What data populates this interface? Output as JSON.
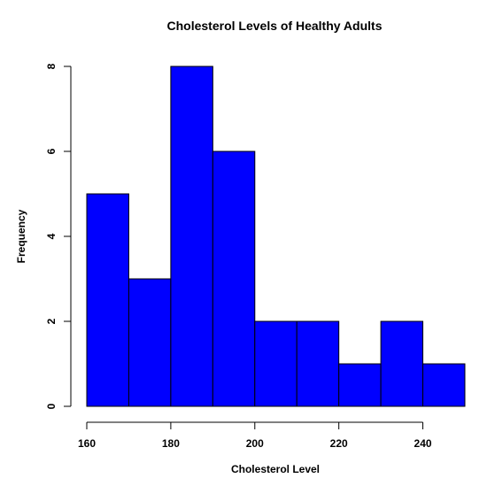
{
  "chart_data": {
    "type": "bar",
    "title": "Cholesterol Levels of Healthy Adults",
    "xlabel": "Cholesterol Level",
    "ylabel": "Frequency",
    "bins": [
      {
        "from": 160,
        "to": 170,
        "count": 5
      },
      {
        "from": 170,
        "to": 180,
        "count": 3
      },
      {
        "from": 180,
        "to": 190,
        "count": 8
      },
      {
        "from": 190,
        "to": 200,
        "count": 6
      },
      {
        "from": 200,
        "to": 210,
        "count": 2
      },
      {
        "from": 210,
        "to": 220,
        "count": 2
      },
      {
        "from": 220,
        "to": 230,
        "count": 1
      },
      {
        "from": 230,
        "to": 240,
        "count": 2
      },
      {
        "from": 240,
        "to": 250,
        "count": 1
      }
    ],
    "xlim": [
      160,
      250
    ],
    "ylim": [
      0,
      8
    ],
    "x_ticks": [
      "160",
      "180",
      "200",
      "220",
      "240"
    ],
    "y_ticks": [
      "0",
      "2",
      "4",
      "6",
      "8"
    ],
    "bar_color": "#0000ff",
    "bar_border_color": "#000000",
    "grid": false,
    "legend": "none"
  }
}
